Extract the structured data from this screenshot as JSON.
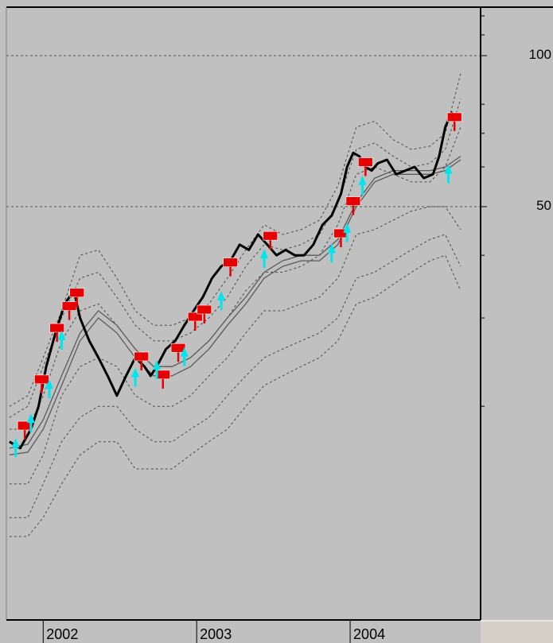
{
  "chart_data": {
    "type": "line",
    "title": "",
    "xlabel": "",
    "ylabel": "",
    "scale": "log",
    "grid": true,
    "y_ticks": [
      {
        "value": 100,
        "label": "100"
      },
      {
        "value": 50,
        "label": "50"
      }
    ],
    "x_ticks": [
      {
        "value": 2002,
        "label": "2002"
      },
      {
        "value": 2003,
        "label": "2003"
      },
      {
        "value": 2004,
        "label": "2004"
      }
    ],
    "xlim": [
      2001.76,
      2004.85
    ],
    "ylim": [
      10,
      125
    ],
    "price": {
      "x": [
        2001.78,
        2001.85,
        2001.92,
        2001.97,
        2002.02,
        2002.08,
        2002.14,
        2002.2,
        2002.24,
        2002.3,
        2002.36,
        2002.42,
        2002.48,
        2002.54,
        2002.6,
        2002.66,
        2002.7,
        2002.74,
        2002.8,
        2002.86,
        2002.92,
        2002.98,
        2003.04,
        2003.1,
        2003.16,
        2003.22,
        2003.28,
        2003.34,
        2003.4,
        2003.46,
        2003.52,
        2003.58,
        2003.64,
        2003.7,
        2003.76,
        2003.82,
        2003.88,
        2003.94,
        2003.98,
        2004.02,
        2004.06,
        2004.1,
        2004.14,
        2004.18,
        2004.24,
        2004.3,
        2004.36,
        2004.42,
        2004.48,
        2004.54,
        2004.58,
        2004.62,
        2004.66,
        2004.7
      ],
      "y": [
        17,
        16.5,
        18,
        20,
        24,
        28,
        32,
        34,
        30,
        27,
        25,
        23,
        21,
        23,
        25,
        24,
        23,
        24,
        26,
        27,
        29,
        31,
        33,
        36,
        38,
        39,
        42,
        41,
        44,
        42,
        40,
        41,
        40,
        40,
        42,
        46,
        48,
        53,
        60,
        64,
        63,
        60,
        59,
        61,
        62,
        58,
        59,
        60,
        57,
        58,
        63,
        72,
        77,
        75
      ]
    },
    "bands": {
      "x": [
        2001.78,
        2001.9,
        2002.0,
        2002.12,
        2002.24,
        2002.36,
        2002.48,
        2002.6,
        2002.72,
        2002.84,
        2002.96,
        2003.08,
        2003.2,
        2003.32,
        2003.44,
        2003.56,
        2003.68,
        2003.8,
        2003.92,
        2004.04,
        2004.16,
        2004.28,
        2004.4,
        2004.52,
        2004.62,
        2004.72
      ],
      "lines": [
        [
          20,
          21,
          25,
          31,
          40,
          41,
          36,
          31,
          29,
          29,
          30,
          32,
          36,
          41,
          46,
          44,
          45,
          47,
          55,
          72,
          74,
          68,
          65,
          66,
          70,
          92
        ],
        [
          19,
          20,
          24,
          30,
          36,
          37,
          33,
          29,
          27,
          27,
          28,
          30,
          33,
          38,
          42,
          41,
          42,
          44,
          51,
          65,
          67,
          63,
          60,
          61,
          65,
          82
        ],
        [
          18,
          18,
          21,
          27,
          31,
          32,
          29,
          26,
          24,
          24,
          25,
          27,
          30,
          34,
          37,
          37,
          38,
          40,
          46,
          58,
          60,
          58,
          56,
          56,
          60,
          72
        ],
        [
          14,
          14,
          16,
          21,
          24,
          25,
          24,
          21,
          20,
          20,
          21,
          23,
          25,
          28,
          31,
          31,
          32,
          33,
          36,
          44,
          45,
          47,
          49,
          50,
          50,
          45
        ],
        [
          12,
          12,
          14,
          17,
          19,
          20,
          20,
          18,
          17,
          17,
          18,
          19,
          21,
          23,
          25,
          26,
          27,
          28,
          30,
          36,
          37,
          39,
          41,
          43,
          44,
          38
        ],
        [
          11,
          11,
          12,
          14,
          16,
          17,
          17,
          15,
          15,
          15,
          16,
          17,
          18,
          20,
          22,
          23,
          24,
          25,
          27,
          32,
          33,
          35,
          37,
          39,
          40,
          34
        ]
      ],
      "ma": [
        [
          16,
          16.2,
          18,
          22,
          27,
          30,
          28,
          25,
          23,
          23,
          24,
          26,
          29,
          32,
          36,
          38,
          39,
          39,
          42,
          50,
          56,
          58,
          58,
          58,
          59,
          62
        ],
        [
          16.5,
          16.8,
          18.8,
          23,
          28,
          31,
          29,
          26,
          24,
          24,
          25,
          27,
          30,
          33,
          37,
          39,
          40,
          40,
          43,
          51,
          57,
          59,
          59,
          59,
          60,
          63
        ]
      ]
    },
    "signals": {
      "sell": [
        {
          "x": 2001.88,
          "y": 18.2
        },
        {
          "x": 2001.99,
          "y": 22.5
        },
        {
          "x": 2002.09,
          "y": 28.5
        },
        {
          "x": 2002.17,
          "y": 31.5
        },
        {
          "x": 2002.22,
          "y": 33.5
        },
        {
          "x": 2002.64,
          "y": 25
        },
        {
          "x": 2002.78,
          "y": 23
        },
        {
          "x": 2002.88,
          "y": 26
        },
        {
          "x": 2002.99,
          "y": 30
        },
        {
          "x": 2003.05,
          "y": 31
        },
        {
          "x": 2003.22,
          "y": 38.5
        },
        {
          "x": 2003.48,
          "y": 43.5
        },
        {
          "x": 2003.94,
          "y": 44
        },
        {
          "x": 2004.02,
          "y": 51
        },
        {
          "x": 2004.1,
          "y": 61
        },
        {
          "x": 2004.68,
          "y": 75
        }
      ],
      "buy": [
        {
          "x": 2001.82,
          "y": 16.8
        },
        {
          "x": 2001.92,
          "y": 18.8
        },
        {
          "x": 2002.04,
          "y": 22
        },
        {
          "x": 2002.12,
          "y": 27.5
        },
        {
          "x": 2002.6,
          "y": 23.2
        },
        {
          "x": 2002.74,
          "y": 24
        },
        {
          "x": 2002.92,
          "y": 25.5
        },
        {
          "x": 2003.16,
          "y": 33
        },
        {
          "x": 2003.44,
          "y": 40
        },
        {
          "x": 2003.88,
          "y": 41
        },
        {
          "x": 2003.98,
          "y": 45
        },
        {
          "x": 2004.08,
          "y": 56
        },
        {
          "x": 2004.64,
          "y": 59
        }
      ]
    },
    "colors": {
      "background": "#c0c0c0",
      "price": "#000000",
      "band": "#4a4a4a",
      "ma": "#5a5a5a",
      "sell": "#e60000",
      "buy": "#00e5ee",
      "grid": "#555555"
    }
  }
}
